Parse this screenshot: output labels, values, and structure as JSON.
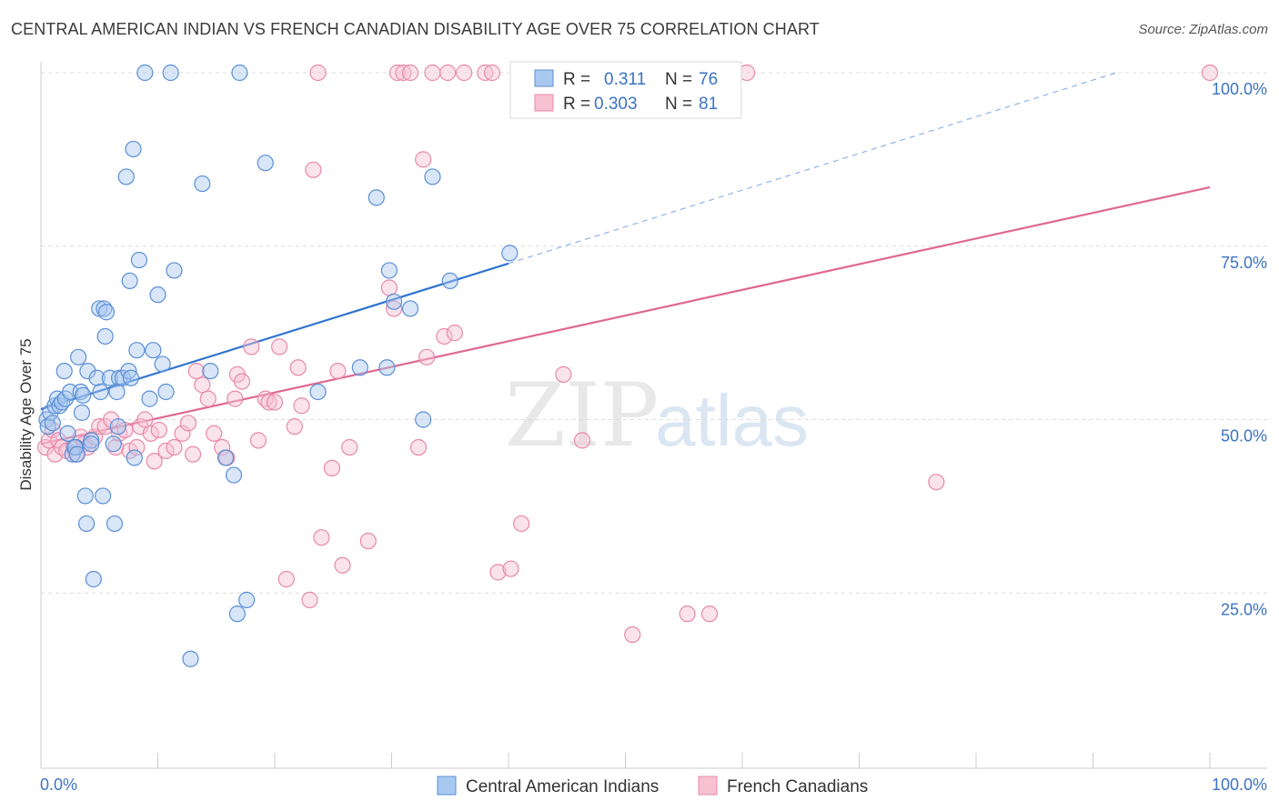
{
  "title": "CENTRAL AMERICAN INDIAN VS FRENCH CANADIAN DISABILITY AGE OVER 75 CORRELATION CHART",
  "source": "Source: ZipAtlas.com",
  "watermark": {
    "part1": "ZIP",
    "part2": "atlas"
  },
  "colors": {
    "blue_fill": "#a9c8f0",
    "blue_stroke": "#5b8fd6",
    "blue_line": "#2f74d0",
    "pink_fill": "#f7c1d2",
    "pink_stroke": "#e889a8",
    "pink_line": "#e06890",
    "tick_text": "#3b73c4",
    "grid": "#dcdcdc"
  },
  "legend": {
    "rows": [
      {
        "r_label": "R =",
        "r_value": "0.311",
        "n_label": "N =",
        "n_value": "76"
      },
      {
        "r_label": "R =",
        "r_value": "0.303",
        "n_label": "N =",
        "n_value": "81"
      }
    ]
  },
  "chart_data": {
    "type": "scatter",
    "title": "CENTRAL AMERICAN INDIAN VS FRENCH CANADIAN DISABILITY AGE OVER 75 CORRELATION CHART",
    "xlabel": "",
    "ylabel": "Disability Age Over 75",
    "xlim": [
      0,
      100
    ],
    "ylim": [
      0,
      102
    ],
    "x_tick_labels": [
      "0.0%",
      "100.0%"
    ],
    "y_ticks": [
      25,
      50,
      75,
      100
    ],
    "y_tick_labels": [
      "25.0%",
      "50.0%",
      "75.0%",
      "100.0%"
    ],
    "grid": true,
    "legend_position": "top-center",
    "series": [
      {
        "name": "Central American Indians",
        "r": 0.311,
        "n": 76,
        "trend": {
          "x0": 0,
          "y0": 51.5,
          "x1": 40,
          "y1": 72.5,
          "dashed_to_x": 92,
          "dashed_to_y": 100
        },
        "points": [
          [
            0.5,
            50
          ],
          [
            0.6,
            49
          ],
          [
            0.8,
            51
          ],
          [
            1.0,
            49.5
          ],
          [
            1.2,
            52
          ],
          [
            1.4,
            53
          ],
          [
            1.6,
            52
          ],
          [
            1.8,
            52.5
          ],
          [
            2.0,
            57
          ],
          [
            2.1,
            53
          ],
          [
            2.3,
            48
          ],
          [
            2.5,
            54
          ],
          [
            2.7,
            45
          ],
          [
            3.0,
            46
          ],
          [
            3.2,
            59
          ],
          [
            3.4,
            54
          ],
          [
            3.5,
            51
          ],
          [
            3.6,
            53.5
          ],
          [
            3.8,
            39
          ],
          [
            3.9,
            35
          ],
          [
            4.0,
            57
          ],
          [
            4.3,
            47
          ],
          [
            4.5,
            27
          ],
          [
            4.8,
            56
          ],
          [
            5.0,
            66
          ],
          [
            5.1,
            54
          ],
          [
            5.3,
            39
          ],
          [
            5.4,
            66
          ],
          [
            5.5,
            62
          ],
          [
            5.6,
            65.5
          ],
          [
            5.9,
            56
          ],
          [
            6.3,
            35
          ],
          [
            6.5,
            54
          ],
          [
            6.6,
            49
          ],
          [
            6.7,
            56
          ],
          [
            7.0,
            56
          ],
          [
            7.3,
            85
          ],
          [
            7.5,
            57
          ],
          [
            7.6,
            70
          ],
          [
            7.7,
            56
          ],
          [
            7.9,
            89
          ],
          [
            8.0,
            44.5
          ],
          [
            8.2,
            60
          ],
          [
            8.4,
            73
          ],
          [
            8.9,
            100
          ],
          [
            9.3,
            53
          ],
          [
            9.6,
            60
          ],
          [
            10.0,
            68
          ],
          [
            10.4,
            58
          ],
          [
            10.7,
            54
          ],
          [
            11.1,
            100
          ],
          [
            11.4,
            71.5
          ],
          [
            12.8,
            15.5
          ],
          [
            13.8,
            84
          ],
          [
            14.5,
            57
          ],
          [
            15.8,
            44.5
          ],
          [
            16.5,
            42
          ],
          [
            16.8,
            22
          ],
          [
            17.0,
            100
          ],
          [
            17.6,
            24
          ],
          [
            19.2,
            87
          ],
          [
            23.7,
            54
          ],
          [
            27.3,
            57.5
          ],
          [
            28.7,
            82
          ],
          [
            29.6,
            57.5
          ],
          [
            29.8,
            71.5
          ],
          [
            30.2,
            67
          ],
          [
            31.6,
            66
          ],
          [
            32.7,
            50
          ],
          [
            33.5,
            85
          ],
          [
            35.0,
            70
          ],
          [
            40.1,
            74
          ],
          [
            4.3,
            46.5
          ],
          [
            2.9,
            46
          ],
          [
            6.2,
            46.5
          ],
          [
            3.1,
            45
          ]
        ]
      },
      {
        "name": "French Canadians",
        "r": 0.303,
        "n": 81,
        "trend": {
          "x0": 0,
          "y0": 46.5,
          "x1": 100,
          "y1": 83.5
        },
        "points": [
          [
            0.4,
            46
          ],
          [
            0.7,
            47
          ],
          [
            1.0,
            48.5
          ],
          [
            1.2,
            45
          ],
          [
            1.5,
            47
          ],
          [
            1.8,
            46
          ],
          [
            2.2,
            45.5
          ],
          [
            2.8,
            46
          ],
          [
            3.0,
            45
          ],
          [
            3.4,
            47.5
          ],
          [
            3.7,
            46.5
          ],
          [
            4.0,
            46
          ],
          [
            4.6,
            47.5
          ],
          [
            5.0,
            49
          ],
          [
            5.5,
            49
          ],
          [
            6.0,
            50
          ],
          [
            6.4,
            46
          ],
          [
            6.7,
            48
          ],
          [
            7.2,
            48.5
          ],
          [
            7.6,
            45.5
          ],
          [
            8.2,
            46
          ],
          [
            8.5,
            49
          ],
          [
            8.9,
            50
          ],
          [
            9.4,
            48
          ],
          [
            9.7,
            44
          ],
          [
            10.1,
            48.5
          ],
          [
            10.7,
            45.5
          ],
          [
            11.4,
            46
          ],
          [
            12.1,
            48
          ],
          [
            12.6,
            49.5
          ],
          [
            13.0,
            45
          ],
          [
            13.3,
            57
          ],
          [
            13.8,
            55
          ],
          [
            14.3,
            53
          ],
          [
            14.8,
            48
          ],
          [
            15.5,
            46
          ],
          [
            15.9,
            44.5
          ],
          [
            16.6,
            53
          ],
          [
            16.8,
            56.5
          ],
          [
            17.2,
            55.5
          ],
          [
            18.0,
            60.5
          ],
          [
            18.6,
            47
          ],
          [
            19.2,
            53
          ],
          [
            19.5,
            52.5
          ],
          [
            20.0,
            52.5
          ],
          [
            20.4,
            60.5
          ],
          [
            21.0,
            27
          ],
          [
            21.7,
            49
          ],
          [
            22.0,
            57.5
          ],
          [
            22.3,
            52
          ],
          [
            23.0,
            24
          ],
          [
            23.3,
            86
          ],
          [
            23.7,
            100
          ],
          [
            24.0,
            33
          ],
          [
            24.9,
            43
          ],
          [
            25.4,
            57
          ],
          [
            25.8,
            29
          ],
          [
            26.4,
            46
          ],
          [
            28.0,
            32.5
          ],
          [
            29.8,
            69
          ],
          [
            30.2,
            66
          ],
          [
            30.5,
            100
          ],
          [
            31.0,
            100
          ],
          [
            31.6,
            100
          ],
          [
            32.3,
            46
          ],
          [
            32.7,
            87.5
          ],
          [
            33.0,
            59
          ],
          [
            33.5,
            100
          ],
          [
            34.5,
            62
          ],
          [
            34.8,
            100
          ],
          [
            35.4,
            62.5
          ],
          [
            36.2,
            100
          ],
          [
            38.0,
            100
          ],
          [
            38.6,
            100
          ],
          [
            39.1,
            28
          ],
          [
            40.2,
            28.5
          ],
          [
            41.1,
            35
          ],
          [
            44.7,
            56.5
          ],
          [
            46.3,
            47
          ],
          [
            50.6,
            19
          ],
          [
            55.3,
            22
          ]
        ],
        "extra_points": [
          [
            57.2,
            22
          ],
          [
            60.4,
            100
          ],
          [
            76.6,
            41
          ],
          [
            100,
            100
          ]
        ]
      }
    ]
  },
  "bottom_legend": {
    "items": [
      {
        "label": "Central American Indians"
      },
      {
        "label": "French Canadians"
      }
    ]
  }
}
